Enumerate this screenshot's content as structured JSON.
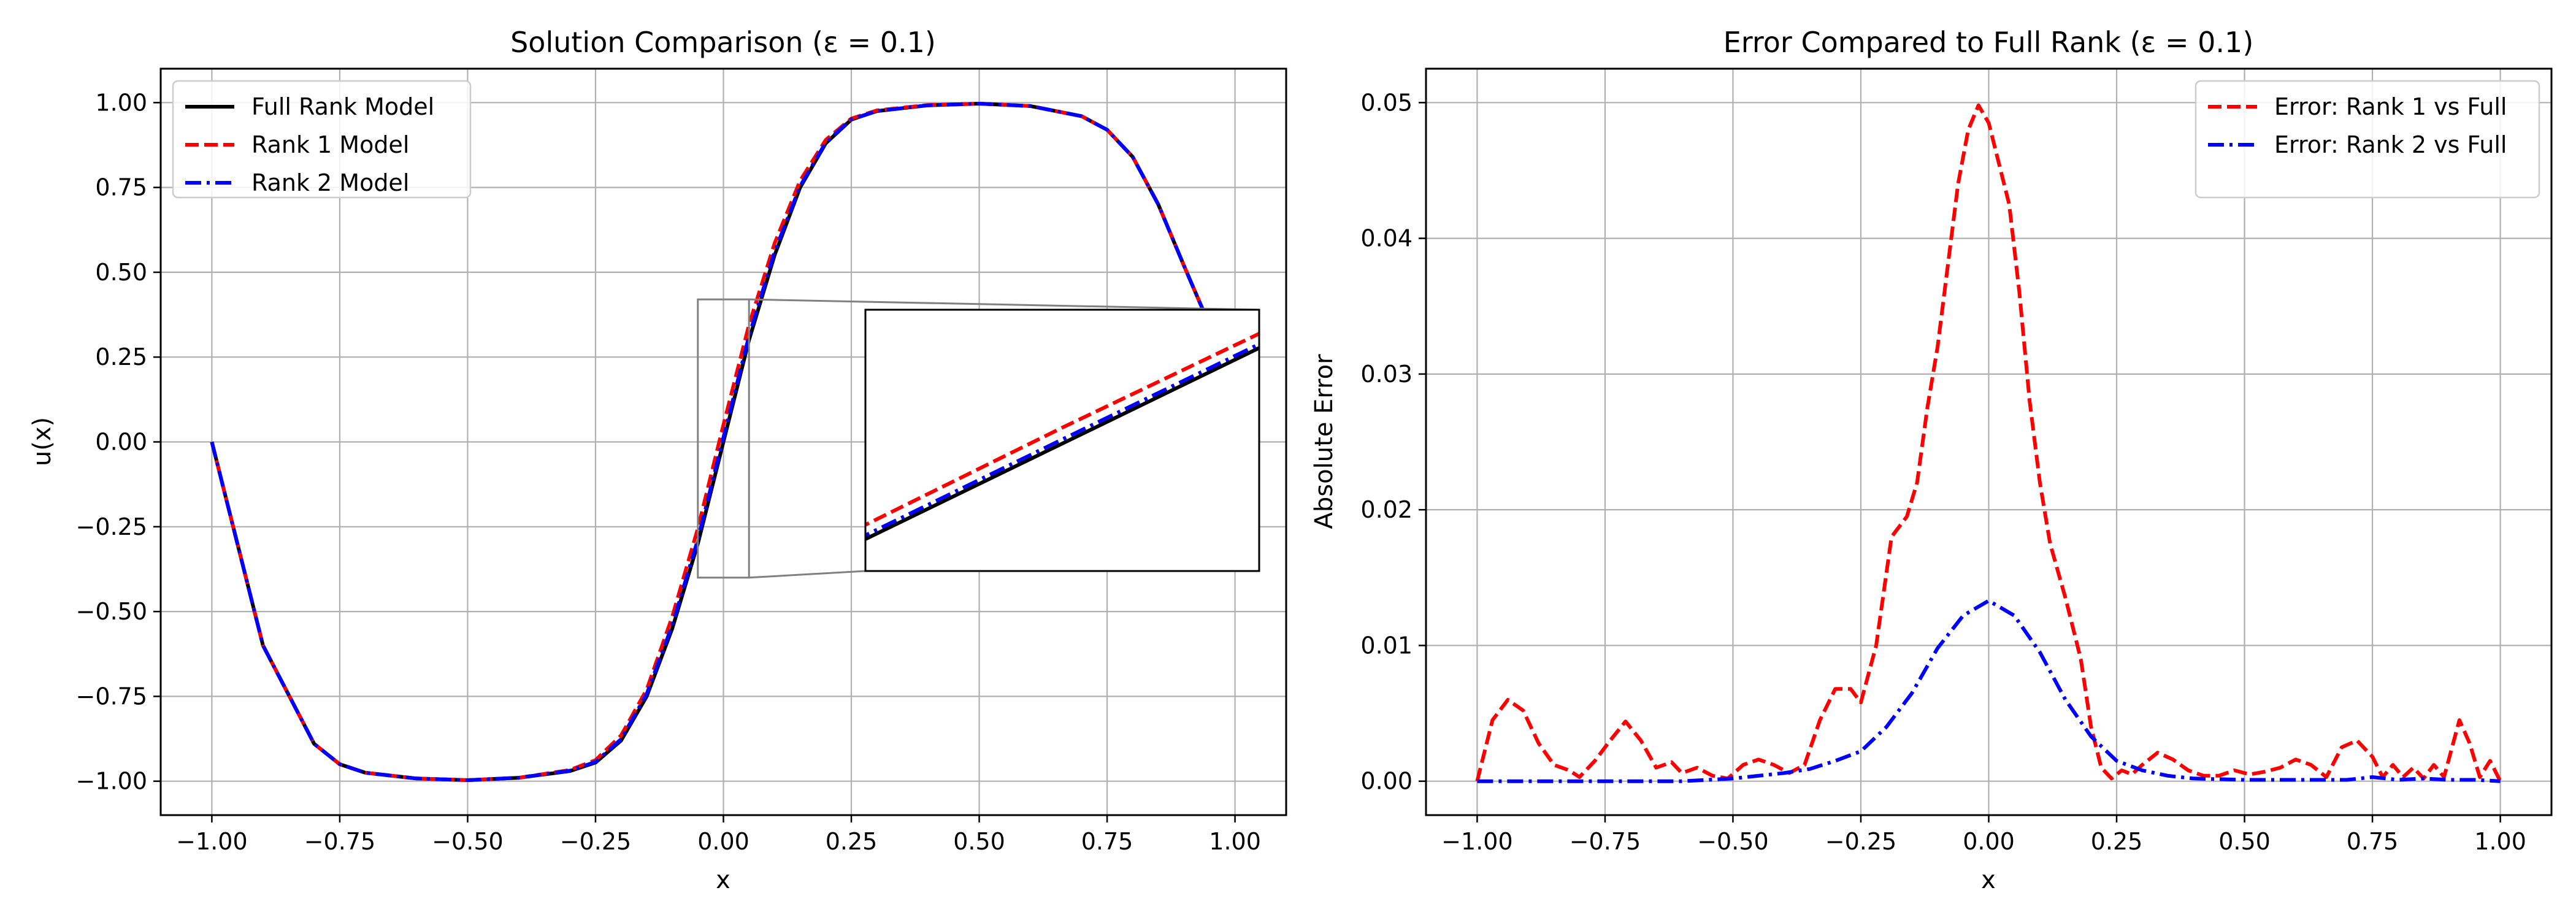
{
  "chart_data": [
    {
      "type": "line",
      "title": "Solution Comparison (ε = 0.1)",
      "xlabel": "x",
      "ylabel": "u(x)",
      "xlim": [
        -1.1,
        1.1
      ],
      "ylim": [
        -1.1,
        1.1
      ],
      "grid": true,
      "legend_position": "upper-left",
      "x_ticks": [
        -1.0,
        -0.75,
        -0.5,
        -0.25,
        0.0,
        0.25,
        0.5,
        0.75,
        1.0
      ],
      "x_tick_labels": [
        "−1.00",
        "−0.75",
        "−0.50",
        "−0.25",
        "0.00",
        "0.25",
        "0.50",
        "0.75",
        "1.00"
      ],
      "y_ticks": [
        -1.0,
        -0.75,
        -0.5,
        -0.25,
        0.0,
        0.25,
        0.5,
        0.75,
        1.0
      ],
      "y_tick_labels": [
        "−1.00",
        "−0.75",
        "−0.50",
        "−0.25",
        "0.00",
        "0.25",
        "0.50",
        "0.75",
        "1.00"
      ],
      "series": [
        {
          "name": "Full Rank Model",
          "color": "#000000",
          "style": "solid",
          "x": [
            -1.0,
            -0.9,
            -0.8,
            -0.75,
            -0.7,
            -0.6,
            -0.5,
            -0.4,
            -0.3,
            -0.25,
            -0.2,
            -0.15,
            -0.1,
            -0.05,
            0.0,
            0.05,
            0.1,
            0.15,
            0.2,
            0.25,
            0.3,
            0.4,
            0.5,
            0.6,
            0.7,
            0.75,
            0.8,
            0.85,
            0.9,
            0.94
          ],
          "y": [
            0.0,
            -0.6,
            -0.89,
            -0.95,
            -0.975,
            -0.992,
            -0.997,
            -0.99,
            -0.97,
            -0.945,
            -0.88,
            -0.75,
            -0.55,
            -0.3,
            0.0,
            0.3,
            0.55,
            0.75,
            0.88,
            0.95,
            0.975,
            0.992,
            0.997,
            0.99,
            0.96,
            0.92,
            0.84,
            0.7,
            0.52,
            0.38
          ]
        },
        {
          "name": "Rank 1 Model",
          "color": "#ff0000",
          "style": "dashed",
          "x": [
            -1.0,
            -0.9,
            -0.8,
            -0.75,
            -0.7,
            -0.6,
            -0.5,
            -0.4,
            -0.3,
            -0.25,
            -0.2,
            -0.15,
            -0.1,
            -0.05,
            0.0,
            0.05,
            0.1,
            0.15,
            0.2,
            0.25,
            0.3,
            0.4,
            0.5,
            0.6,
            0.7,
            0.75,
            0.8,
            0.85,
            0.9,
            0.94
          ],
          "y": [
            0.0,
            -0.6,
            -0.89,
            -0.95,
            -0.975,
            -0.992,
            -0.997,
            -0.99,
            -0.967,
            -0.938,
            -0.865,
            -0.73,
            -0.515,
            -0.255,
            0.05,
            0.345,
            0.585,
            0.77,
            0.89,
            0.953,
            0.977,
            0.993,
            0.997,
            0.99,
            0.96,
            0.92,
            0.84,
            0.7,
            0.52,
            0.38
          ]
        },
        {
          "name": "Rank 2 Model",
          "color": "#0000ff",
          "style": "dashdot",
          "x": [
            -1.0,
            -0.9,
            -0.8,
            -0.75,
            -0.7,
            -0.6,
            -0.5,
            -0.4,
            -0.3,
            -0.25,
            -0.2,
            -0.15,
            -0.1,
            -0.05,
            0.0,
            0.05,
            0.1,
            0.15,
            0.2,
            0.25,
            0.3,
            0.4,
            0.5,
            0.6,
            0.7,
            0.75,
            0.8,
            0.85,
            0.9,
            0.94
          ],
          "y": [
            0.0,
            -0.6,
            -0.89,
            -0.95,
            -0.975,
            -0.992,
            -0.997,
            -0.99,
            -0.969,
            -0.943,
            -0.876,
            -0.743,
            -0.54,
            -0.288,
            0.013,
            0.312,
            0.56,
            0.754,
            0.882,
            0.951,
            0.975,
            0.992,
            0.997,
            0.99,
            0.96,
            0.92,
            0.84,
            0.7,
            0.52,
            0.38
          ]
        }
      ],
      "inset": {
        "xlim": [
          -0.05,
          0.05
        ],
        "ylim": [
          -0.4,
          0.42
        ]
      }
    },
    {
      "type": "line",
      "title": "Error Compared to Full Rank (ε = 0.1)",
      "xlabel": "x",
      "ylabel": "Absolute Error",
      "xlim": [
        -1.1,
        1.1
      ],
      "ylim": [
        -0.0025,
        0.0525
      ],
      "grid": true,
      "legend_position": "upper-right",
      "x_ticks": [
        -1.0,
        -0.75,
        -0.5,
        -0.25,
        0.0,
        0.25,
        0.5,
        0.75,
        1.0
      ],
      "x_tick_labels": [
        "−1.00",
        "−0.75",
        "−0.50",
        "−0.25",
        "0.00",
        "0.25",
        "0.50",
        "0.75",
        "1.00"
      ],
      "y_ticks": [
        0.0,
        0.01,
        0.02,
        0.03,
        0.04,
        0.05
      ],
      "y_tick_labels": [
        "0.00",
        "0.01",
        "0.02",
        "0.03",
        "0.04",
        "0.05"
      ],
      "series": [
        {
          "name": "Error: Rank 1 vs Full",
          "color": "#ff0000",
          "style": "dashed",
          "x": [
            -1.0,
            -0.97,
            -0.94,
            -0.91,
            -0.88,
            -0.85,
            -0.82,
            -0.8,
            -0.77,
            -0.74,
            -0.71,
            -0.68,
            -0.65,
            -0.62,
            -0.6,
            -0.57,
            -0.54,
            -0.51,
            -0.48,
            -0.45,
            -0.42,
            -0.39,
            -0.36,
            -0.33,
            -0.3,
            -0.27,
            -0.25,
            -0.22,
            -0.19,
            -0.16,
            -0.14,
            -0.12,
            -0.1,
            -0.08,
            -0.06,
            -0.04,
            -0.02,
            0.0,
            0.02,
            0.04,
            0.06,
            0.08,
            0.1,
            0.12,
            0.15,
            0.18,
            0.2,
            0.22,
            0.24,
            0.26,
            0.28,
            0.3,
            0.33,
            0.36,
            0.39,
            0.42,
            0.45,
            0.48,
            0.51,
            0.54,
            0.57,
            0.6,
            0.63,
            0.66,
            0.69,
            0.72,
            0.75,
            0.77,
            0.79,
            0.81,
            0.83,
            0.85,
            0.87,
            0.89,
            0.92,
            0.94,
            0.96,
            0.98,
            1.0
          ],
          "y": [
            0.0,
            0.0045,
            0.006,
            0.0052,
            0.0028,
            0.0012,
            0.0008,
            0.0003,
            0.0015,
            0.003,
            0.0044,
            0.003,
            0.001,
            0.0014,
            0.0006,
            0.001,
            0.0004,
            0.0002,
            0.0012,
            0.0016,
            0.0012,
            0.0006,
            0.0012,
            0.0045,
            0.0068,
            0.0068,
            0.0058,
            0.01,
            0.018,
            0.0195,
            0.022,
            0.0275,
            0.032,
            0.038,
            0.044,
            0.048,
            0.0498,
            0.0485,
            0.0455,
            0.0425,
            0.036,
            0.028,
            0.022,
            0.0175,
            0.0135,
            0.009,
            0.004,
            0.001,
            0.0002,
            0.0008,
            0.0005,
            0.0012,
            0.0021,
            0.0016,
            0.0008,
            0.0004,
            0.0004,
            0.0008,
            0.0005,
            0.0007,
            0.001,
            0.0016,
            0.0012,
            0.0003,
            0.0025,
            0.003,
            0.0018,
            0.0003,
            0.0012,
            0.0003,
            0.001,
            0.0002,
            0.0012,
            0.0003,
            0.0045,
            0.0028,
            0.0003,
            0.0015,
            0.0
          ]
        },
        {
          "name": "Error: Rank 2 vs Full",
          "color": "#0000ff",
          "style": "dashdot",
          "x": [
            -1.0,
            -0.9,
            -0.8,
            -0.7,
            -0.6,
            -0.5,
            -0.4,
            -0.35,
            -0.3,
            -0.25,
            -0.2,
            -0.15,
            -0.1,
            -0.05,
            0.0,
            0.05,
            0.1,
            0.15,
            0.2,
            0.25,
            0.3,
            0.35,
            0.4,
            0.5,
            0.6,
            0.7,
            0.75,
            0.8,
            0.85,
            0.9,
            0.95,
            1.0
          ],
          "y": [
            0.0,
            0.0,
            0.0,
            0.0,
            0.0,
            0.0002,
            0.0006,
            0.0009,
            0.0015,
            0.0022,
            0.004,
            0.0065,
            0.0098,
            0.0122,
            0.0133,
            0.0122,
            0.0095,
            0.006,
            0.0033,
            0.0015,
            0.0008,
            0.0004,
            0.0002,
            0.0001,
            0.0001,
            0.0001,
            0.0003,
            0.0001,
            0.0002,
            0.0001,
            0.0001,
            0.0
          ]
        }
      ]
    }
  ]
}
